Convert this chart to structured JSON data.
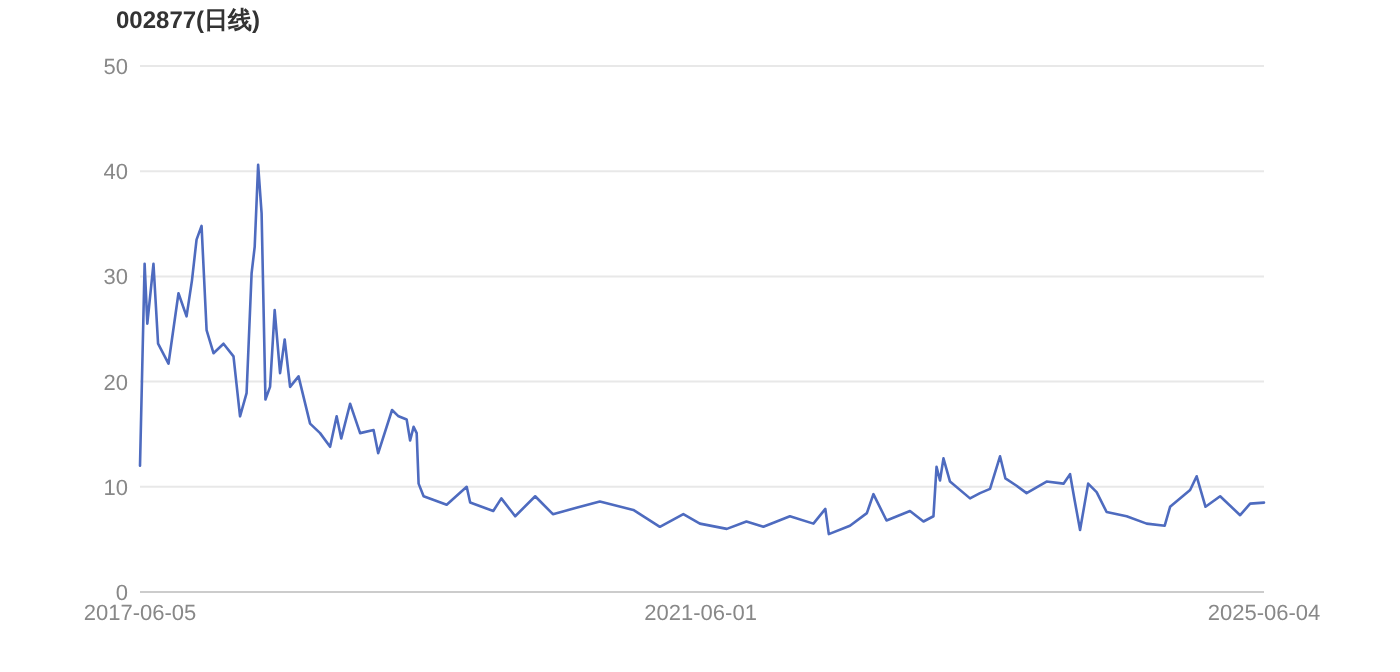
{
  "chart_data": {
    "type": "line",
    "title": "002877(日线)",
    "x": [
      "2017-06-05",
      "2017-06-17",
      "2017-06-24",
      "2017-07-10",
      "2017-07-22",
      "2017-08-18",
      "2017-09-13",
      "2017-10-04",
      "2017-10-18",
      "2017-10-30",
      "2017-11-12",
      "2017-11-25",
      "2017-12-13",
      "2018-01-08",
      "2018-02-03",
      "2018-02-20",
      "2018-03-09",
      "2018-03-22",
      "2018-03-30",
      "2018-04-08",
      "2018-04-17",
      "2018-04-27",
      "2018-05-09",
      "2018-05-21",
      "2018-06-04",
      "2018-06-16",
      "2018-06-30",
      "2018-07-22",
      "2018-08-21",
      "2018-09-16",
      "2018-10-12",
      "2018-10-29",
      "2018-11-10",
      "2018-12-03",
      "2018-12-29",
      "2019-02-02",
      "2019-02-14",
      "2019-03-22",
      "2019-04-08",
      "2019-04-29",
      "2019-05-08",
      "2019-05-17",
      "2019-05-25",
      "2019-05-30",
      "2019-06-12",
      "2019-08-11",
      "2019-10-02",
      "2019-10-11",
      "2019-12-10",
      "2019-12-31",
      "2020-02-05",
      "2020-03-28",
      "2020-05-13",
      "2020-07-13",
      "2020-09-12",
      "2020-12-08",
      "2021-02-15",
      "2021-04-17",
      "2021-05-30",
      "2021-08-08",
      "2021-09-28",
      "2021-11-11",
      "2022-01-19",
      "2022-03-21",
      "2022-04-21",
      "2022-04-30",
      "2022-06-24",
      "2022-08-07",
      "2022-08-24",
      "2022-09-27",
      "2022-11-27",
      "2023-01-01",
      "2023-01-27",
      "2023-02-04",
      "2023-02-13",
      "2023-02-22",
      "2023-03-11",
      "2023-05-02",
      "2023-05-28",
      "2023-06-23",
      "2023-07-19",
      "2023-08-02",
      "2023-08-31",
      "2023-09-26",
      "2023-11-17",
      "2023-12-31",
      "2024-01-17",
      "2024-01-29",
      "2024-02-12",
      "2024-03-04",
      "2024-03-26",
      "2024-04-21",
      "2024-06-12",
      "2024-08-03",
      "2024-09-19",
      "2024-10-03",
      "2024-11-24",
      "2024-12-11",
      "2025-01-03",
      "2025-02-10",
      "2025-04-03",
      "2025-04-29",
      "2025-06-04"
    ],
    "series": [
      {
        "color": "#4e6bbf",
        "values": [
          12.0,
          31.2,
          25.5,
          31.2,
          23.6,
          21.7,
          28.4,
          26.2,
          29.6,
          33.5,
          34.8,
          24.9,
          22.7,
          23.6,
          22.4,
          16.7,
          18.9,
          30.3,
          32.8,
          40.6,
          36.0,
          18.3,
          19.5,
          26.8,
          20.8,
          24.0,
          19.5,
          20.5,
          16.0,
          15.1,
          13.8,
          16.7,
          14.6,
          17.9,
          15.1,
          15.4,
          13.2,
          17.3,
          16.7,
          16.4,
          14.4,
          15.7,
          15.1,
          10.3,
          9.1,
          8.3,
          10.0,
          8.5,
          7.7,
          8.9,
          7.2,
          9.1,
          7.4,
          8.0,
          8.6,
          7.8,
          6.2,
          7.4,
          6.5,
          6.0,
          6.7,
          6.2,
          7.2,
          6.5,
          7.9,
          5.5,
          6.3,
          7.5,
          9.3,
          6.8,
          7.7,
          6.7,
          7.2,
          11.9,
          10.6,
          12.7,
          10.5,
          8.9,
          9.4,
          9.8,
          12.9,
          10.8,
          10.1,
          9.4,
          10.5,
          10.3,
          11.2,
          8.7,
          5.9,
          10.3,
          9.5,
          7.6,
          7.2,
          6.5,
          6.3,
          8.1,
          9.7,
          11.0,
          8.1,
          9.1,
          7.3,
          8.4,
          8.5
        ]
      }
    ],
    "xlim": [
      "2017-06-05",
      "2025-06-04"
    ],
    "xticks": [
      {
        "value": "2017-06-05",
        "label": "2017-06-05"
      },
      {
        "value": "2021-06-01",
        "label": "2021-06-01"
      },
      {
        "value": "2025-06-04",
        "label": "2025-06-04"
      }
    ],
    "ylim": [
      0,
      50
    ],
    "yticks": [
      0,
      10,
      20,
      30,
      40,
      50
    ],
    "grid": "y",
    "marker": "none",
    "line_style": "solid"
  }
}
